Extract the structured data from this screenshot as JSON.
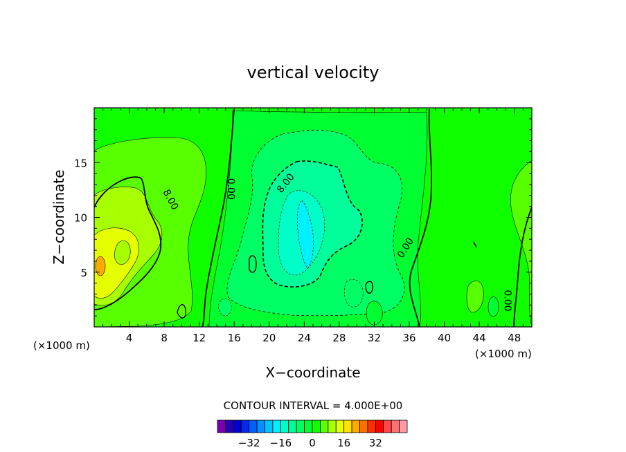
{
  "chart_data": {
    "type": "heatmap",
    "title": "vertical velocity",
    "xlabel": "X−coordinate",
    "ylabel": "Z−coordinate",
    "x_unit_left": "(×1000 m)",
    "x_unit_right": "(×1000 m)",
    "xlim": [
      0,
      50
    ],
    "ylim": [
      0,
      20
    ],
    "x_ticks": [
      4,
      8,
      12,
      16,
      20,
      24,
      28,
      32,
      36,
      40,
      44,
      48
    ],
    "y_ticks": [
      5,
      10,
      15
    ],
    "contour_labels": [
      {
        "text": "8.00",
        "x": 8.7,
        "y": 11.6,
        "angle": 62
      },
      {
        "text": "0.00",
        "x": 15.6,
        "y": 12.6,
        "angle": 90
      },
      {
        "text": "8.00",
        "x": 21.9,
        "y": 13.1,
        "angle": -52
      },
      {
        "text": "0.00",
        "x": 35.6,
        "y": 7.2,
        "angle": -58
      },
      {
        "text": "0.00",
        "x": 47.2,
        "y": 2.4,
        "angle": 90
      }
    ],
    "contour_interval_text": "CONTOUR INTERVAL = 4.000E+00",
    "colorbar": {
      "colors": [
        "#7a00b0",
        "#2800b4",
        "#0000cc",
        "#0028ee",
        "#0060ff",
        "#0090ff",
        "#00c4ff",
        "#00f0ff",
        "#00ffc8",
        "#00ff9a",
        "#00ff64",
        "#00ff30",
        "#10ff00",
        "#58ff00",
        "#a8ff00",
        "#e6ff00",
        "#ffe000",
        "#ffaa00",
        "#ff7000",
        "#ff3000",
        "#ff0000",
        "#ff4848",
        "#ff7070",
        "#ff9aa6"
      ],
      "tick_labels": [
        "−32",
        "−16",
        "0",
        "16",
        "32"
      ],
      "tick_values": [
        -32,
        -16,
        0,
        16,
        32
      ],
      "range": [
        -48,
        48
      ]
    },
    "field_colors": {
      "base": "#10ff00",
      "lime": "#58ff00",
      "lime_yellow": "#a8ff00",
      "yellow": "#e6ff00",
      "orange": "#ffaa00",
      "green_1": "#00ff30",
      "green_2": "#00ff64",
      "teal_1": "#00ff9a",
      "teal_2": "#00ffc8",
      "cyan": "#00f0ff"
    }
  }
}
